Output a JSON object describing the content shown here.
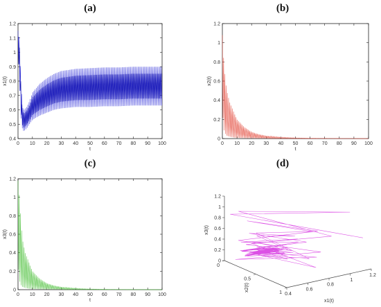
{
  "chart_data": [
    {
      "panel": "(a)",
      "type": "line",
      "xlabel": "t",
      "ylabel": "x1(t)",
      "xlim": [
        0,
        100
      ],
      "ylim": [
        0.4,
        1.2
      ],
      "xticks": [
        "0",
        "10",
        "20",
        "30",
        "40",
        "50",
        "60",
        "70",
        "80",
        "90",
        "100"
      ],
      "yticks": [
        "0.4",
        "0.5",
        "0.6",
        "0.7",
        "0.8",
        "0.9",
        "1",
        "1.1",
        "1.2"
      ],
      "color": "#1f1fd6",
      "series": [
        {
          "role": "upper envelope",
          "x": [
            0,
            1,
            2,
            3,
            4,
            6,
            8,
            10,
            15,
            20,
            25,
            30,
            40,
            50,
            60,
            70,
            80,
            90,
            100
          ],
          "y": [
            1.15,
            1.1,
            0.82,
            0.62,
            0.6,
            0.62,
            0.66,
            0.72,
            0.78,
            0.82,
            0.85,
            0.87,
            0.885,
            0.89,
            0.895,
            0.895,
            0.9,
            0.9,
            0.9
          ]
        },
        {
          "role": "lower envelope",
          "x": [
            0,
            1,
            2,
            3,
            4,
            6,
            8,
            10,
            15,
            20,
            25,
            30,
            40,
            50,
            60,
            70,
            80,
            90,
            100
          ],
          "y": [
            1.0,
            0.8,
            0.55,
            0.47,
            0.45,
            0.47,
            0.5,
            0.53,
            0.56,
            0.58,
            0.6,
            0.61,
            0.62,
            0.62,
            0.625,
            0.625,
            0.63,
            0.63,
            0.63
          ]
        }
      ]
    },
    {
      "panel": "(b)",
      "type": "line",
      "xlabel": "t",
      "ylabel": "x2(t)",
      "xlim": [
        0,
        100
      ],
      "ylim": [
        0,
        1.2
      ],
      "xticks": [
        "0",
        "10",
        "20",
        "30",
        "40",
        "50",
        "60",
        "70",
        "80",
        "90",
        "100"
      ],
      "yticks": [
        "0",
        "0.2",
        "0.4",
        "0.6",
        "0.8",
        "1",
        "1.2"
      ],
      "color": "#e03a2a",
      "series": [
        {
          "role": "upper envelope",
          "x": [
            0,
            1,
            2,
            3,
            5,
            8,
            10,
            15,
            20,
            25,
            30,
            40,
            50,
            60,
            80,
            100
          ],
          "y": [
            1.08,
            0.8,
            0.62,
            0.5,
            0.38,
            0.27,
            0.2,
            0.12,
            0.07,
            0.045,
            0.03,
            0.015,
            0.008,
            0.004,
            0.002,
            0.001
          ]
        },
        {
          "role": "lower envelope",
          "x": [
            0,
            1,
            2,
            3,
            5,
            8,
            10,
            15,
            20,
            25,
            30,
            40,
            50,
            60,
            80,
            100
          ],
          "y": [
            0.3,
            0.1,
            0.05,
            0.03,
            0.02,
            0.01,
            0.008,
            0.005,
            0.003,
            0.002,
            0.001,
            0,
            0,
            0,
            0,
            0
          ]
        }
      ]
    },
    {
      "panel": "(c)",
      "type": "line",
      "xlabel": "t",
      "ylabel": "x3(t)",
      "xlim": [
        0,
        100
      ],
      "ylim": [
        0,
        1.2
      ],
      "xticks": [
        "0",
        "10",
        "20",
        "30",
        "40",
        "50",
        "60",
        "70",
        "80",
        "90",
        "100"
      ],
      "yticks": [
        "0",
        "0.2",
        "0.4",
        "0.6",
        "0.8",
        "1",
        "1.2"
      ],
      "color": "#3dbb2a",
      "series": [
        {
          "role": "upper envelope",
          "x": [
            0,
            1,
            2,
            3,
            5,
            8,
            10,
            15,
            20,
            25,
            30,
            40,
            50,
            60,
            80,
            100
          ],
          "y": [
            1.18,
            1.0,
            0.75,
            0.55,
            0.4,
            0.28,
            0.2,
            0.12,
            0.07,
            0.045,
            0.03,
            0.015,
            0.008,
            0.004,
            0.002,
            0.001
          ]
        },
        {
          "role": "lower envelope",
          "x": [
            0,
            1,
            2,
            3,
            5,
            8,
            10,
            15,
            20,
            25,
            30,
            40,
            50,
            60,
            80,
            100
          ],
          "y": [
            0.3,
            0.1,
            0.05,
            0.03,
            0.02,
            0.01,
            0.008,
            0.005,
            0.003,
            0.002,
            0.001,
            0,
            0,
            0,
            0,
            0
          ]
        }
      ]
    },
    {
      "panel": "(d)",
      "type": "line-3d",
      "xlabel": "x1(t)",
      "ylabel": "x2(t)",
      "zlabel": "x3(t)",
      "x1ticks": [
        "0.4",
        "0.6",
        "0.8",
        "1",
        "1.2"
      ],
      "x2ticks": [
        "0",
        "0.5",
        "1"
      ],
      "x3ticks": [
        "0",
        "0.2",
        "0.4",
        "0.6",
        "0.8",
        "1",
        "1.2"
      ],
      "x1lim": [
        0.4,
        1.2
      ],
      "x2lim": [
        0,
        1
      ],
      "x3lim": [
        0,
        1.2
      ],
      "color": "#d633e0"
    }
  ]
}
